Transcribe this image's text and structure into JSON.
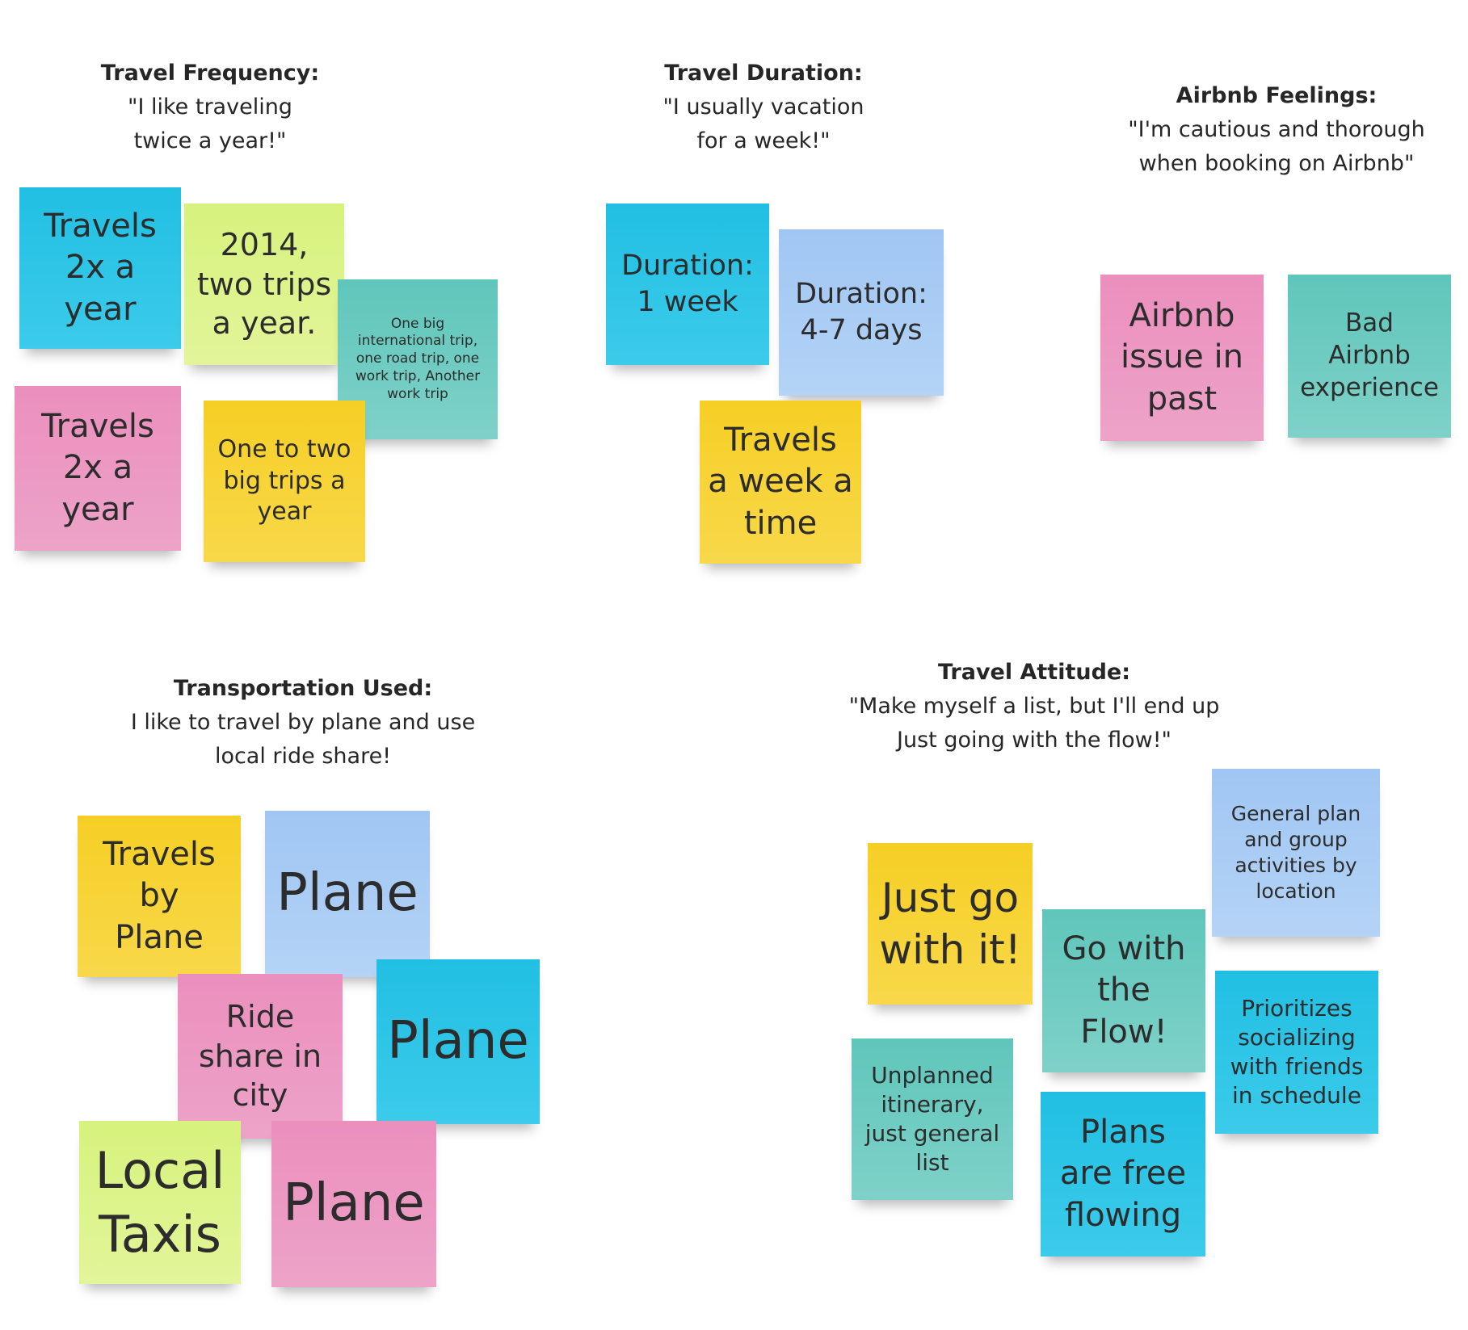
{
  "sections": {
    "frequency": {
      "title": "Travel Frequency:",
      "quote": "\"I like traveling\ntwice a year!\""
    },
    "duration": {
      "title": "Travel Duration:",
      "quote": "\"I usually vacation\nfor a week!\""
    },
    "airbnb": {
      "title": "Airbnb Feelings:",
      "quote": "\"I'm cautious and thorough\nwhen booking on Airbnb\""
    },
    "transportation": {
      "title": "Transportation Used:",
      "quote": "I like to travel by plane and use\nlocal ride share!"
    },
    "attitude": {
      "title": "Travel Attitude:",
      "quote": "\"Make myself a list, but I'll end up\nJust going with the flow!\""
    }
  },
  "notes": {
    "freq_1": "Travels\n2x a\nyear",
    "freq_2": "2014,\ntwo trips\na year.",
    "freq_3": "One big\ninternational trip,\none road trip, one\nwork trip, Another\nwork trip",
    "freq_4": "Travels\n2x a\nyear",
    "freq_5": "One to two\nbig trips a\nyear",
    "dur_1": "Duration:\n1 week",
    "dur_2": "Duration:\n4-7 days",
    "dur_3": "Travels\na week a\ntime",
    "air_1": "Airbnb\nissue in\npast",
    "air_2": "Bad\nAirbnb\nexperience",
    "trans_1": "Travels\nby\nPlane",
    "trans_2": "Plane",
    "trans_3": "Ride\nshare in\ncity",
    "trans_4": "Plane",
    "trans_5": "Local\nTaxis",
    "trans_6": "Plane",
    "att_1": "General plan\nand group\nactivities by\nlocation",
    "att_2": "Just go\nwith it!",
    "att_3": "Go with\nthe\nFlow!",
    "att_4": "Prioritizes\nsocializing\nwith friends\nin schedule",
    "att_5": "Unplanned\nitinerary,\njust general\nlist",
    "att_6": "Plans\nare free\nflowing"
  },
  "colors": {
    "cyan": "#21bfe3",
    "pink": "#eb8fbd",
    "lime": "#d7f27d",
    "yellow": "#f6cf25",
    "teal": "#5fc6bb",
    "blue": "#a0c6f3"
  }
}
